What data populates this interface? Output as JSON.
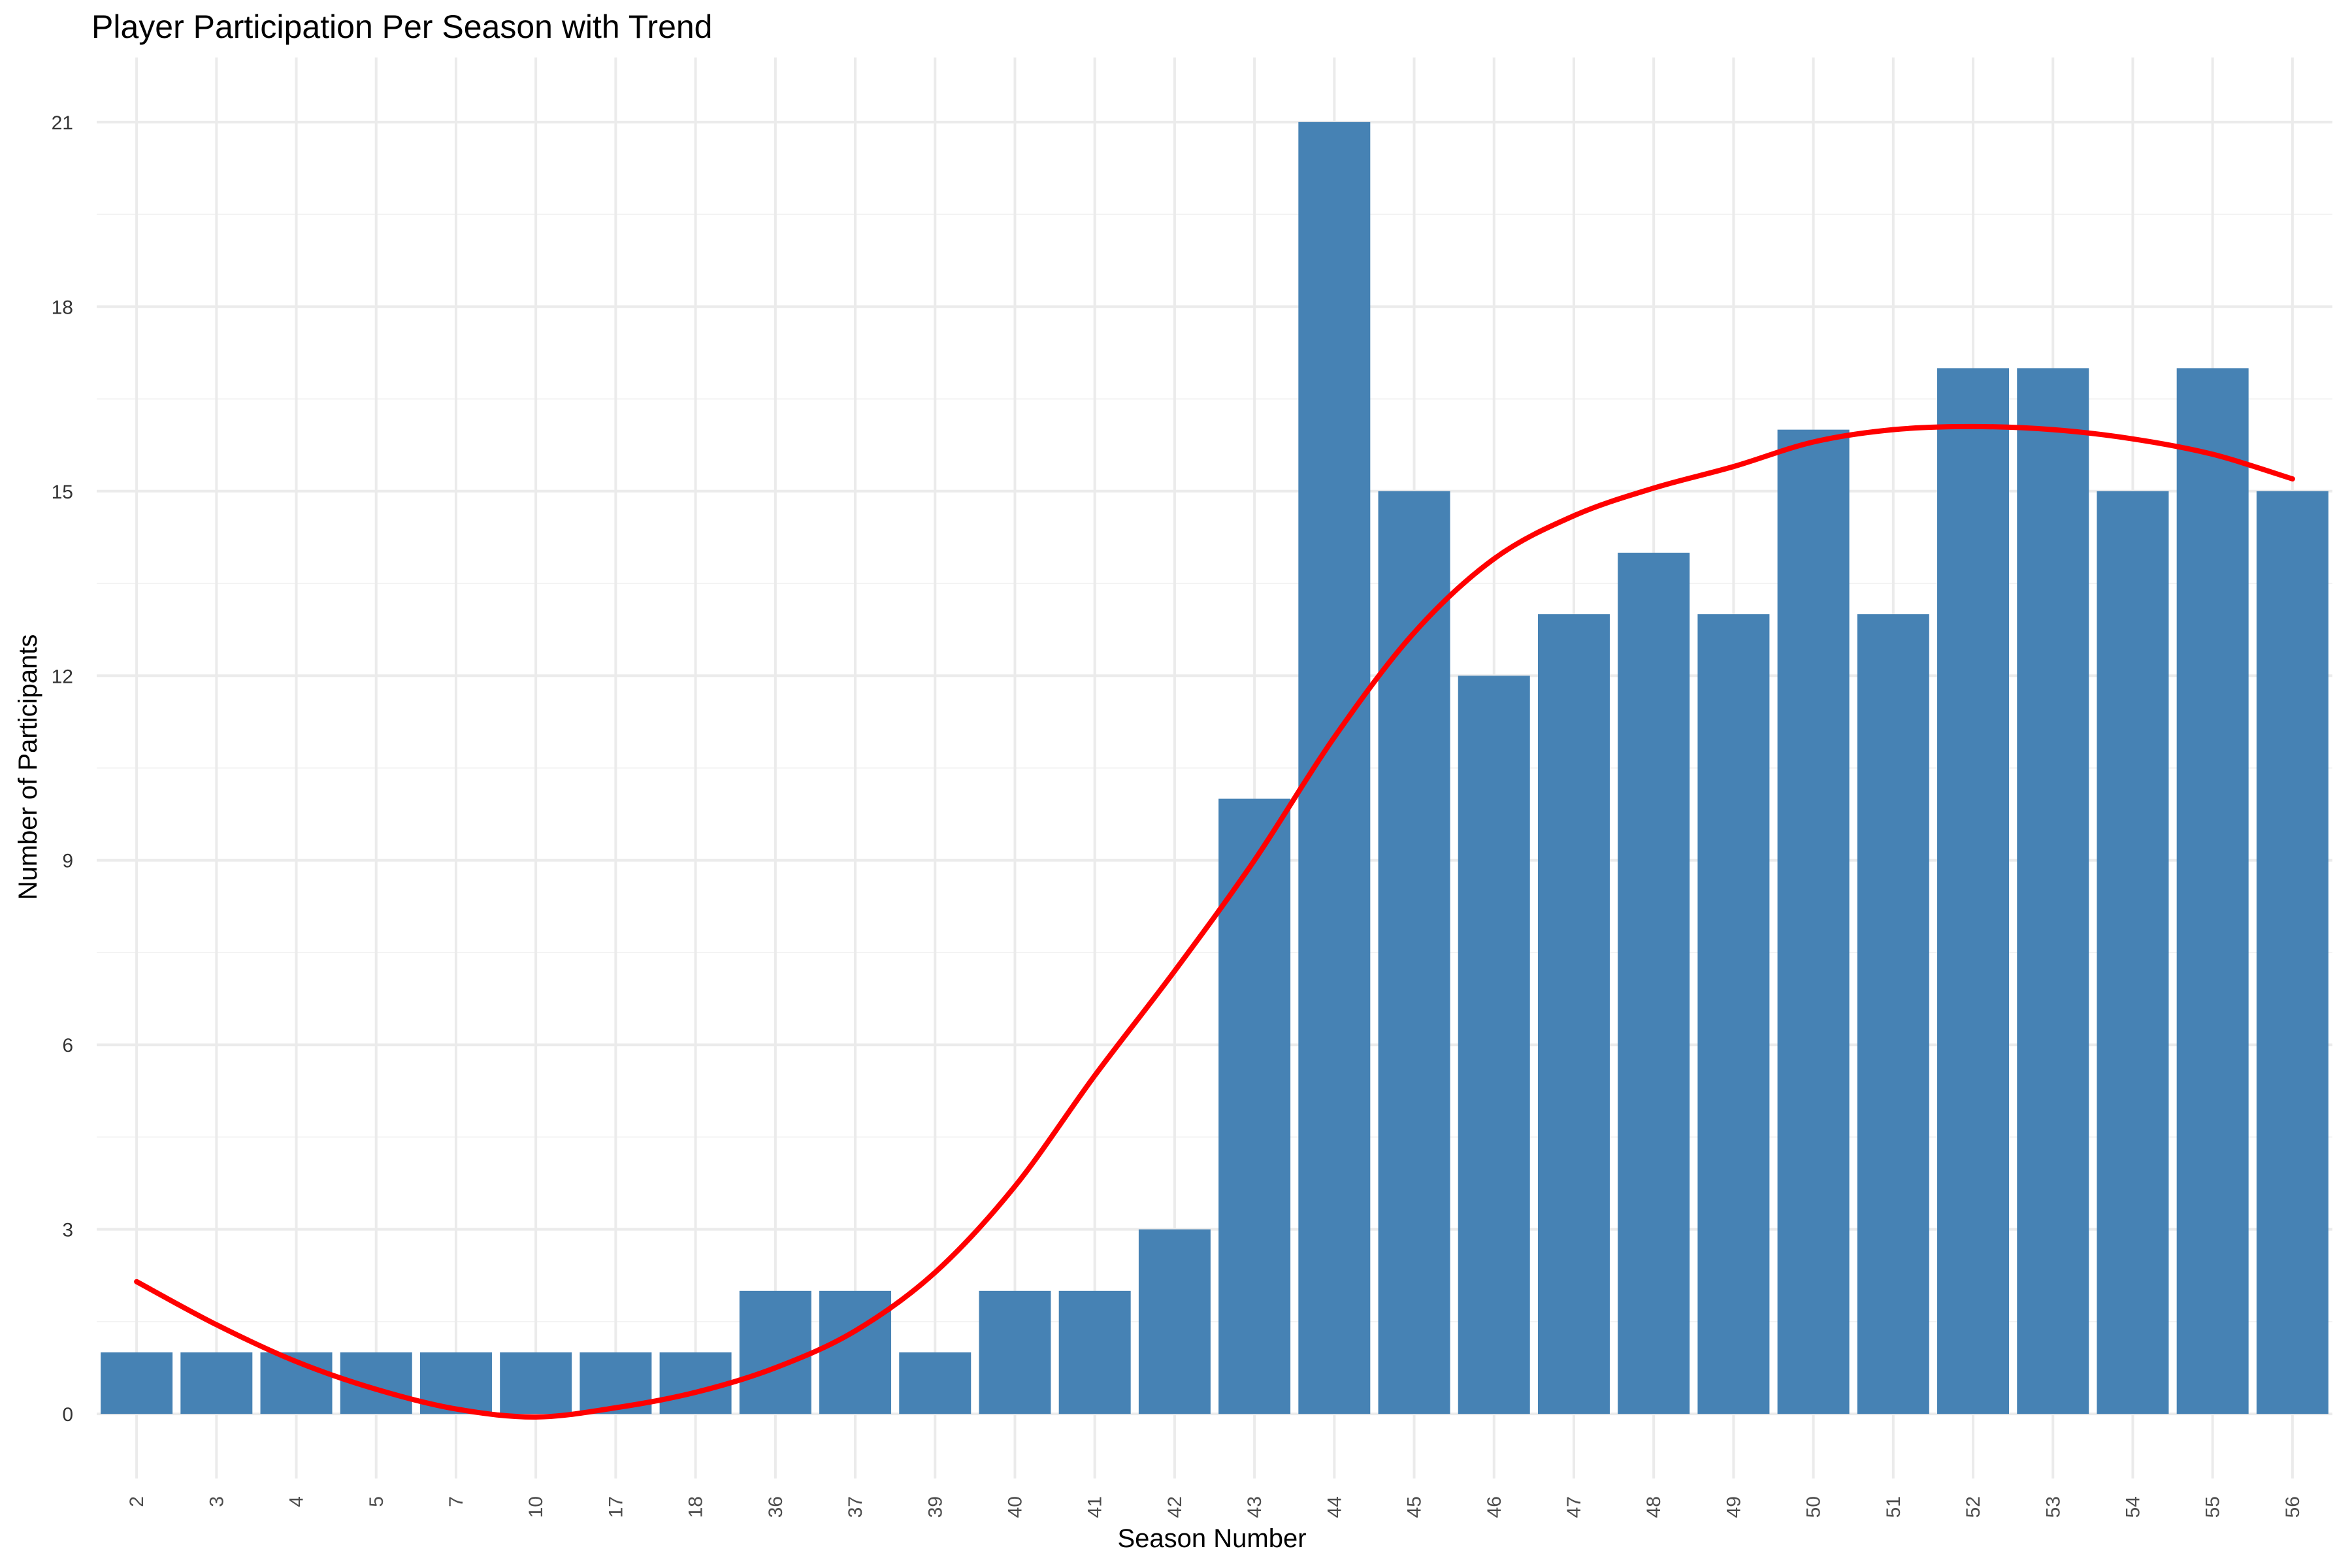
{
  "chart_data": {
    "type": "bar",
    "title": "Player Participation Per Season with Trend",
    "xlabel": "Season Number",
    "ylabel": "Number of Participants",
    "categories": [
      "2",
      "3",
      "4",
      "5",
      "7",
      "10",
      "17",
      "18",
      "36",
      "37",
      "39",
      "40",
      "41",
      "42",
      "43",
      "44",
      "45",
      "46",
      "47",
      "48",
      "49",
      "50",
      "51",
      "52",
      "53",
      "54",
      "55",
      "56"
    ],
    "values": [
      1,
      1,
      1,
      1,
      1,
      1,
      1,
      1,
      2,
      2,
      1,
      2,
      2,
      3,
      10,
      21,
      15,
      12,
      13,
      14,
      13,
      16,
      13,
      17,
      17,
      15,
      17,
      15
    ],
    "y_ticks": [
      0,
      3,
      6,
      9,
      12,
      15,
      18,
      21
    ],
    "ylim": [
      -1.05,
      22.05
    ],
    "grid": true,
    "legend": "none",
    "bar_color": "#4682B4",
    "trend": {
      "type": "line",
      "color": "#FF0000",
      "values": [
        2.15,
        1.45,
        0.85,
        0.4,
        0.08,
        -0.05,
        0.1,
        0.35,
        0.75,
        1.35,
        2.3,
        3.7,
        5.5,
        7.2,
        9.0,
        11.0,
        12.7,
        13.9,
        14.6,
        15.05,
        15.4,
        15.8,
        16.0,
        16.05,
        16.0,
        15.85,
        15.6,
        15.2
      ]
    }
  }
}
